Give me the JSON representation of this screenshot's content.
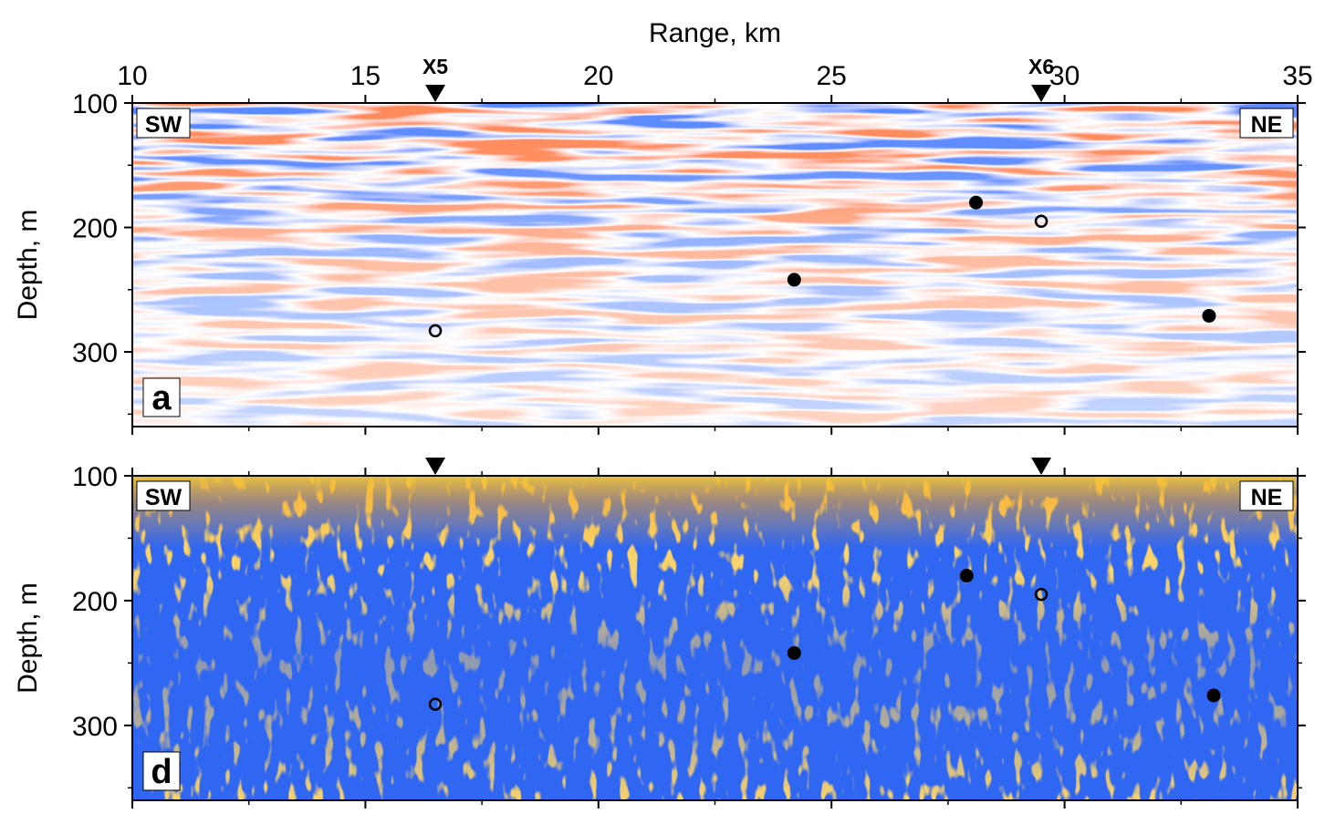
{
  "chart_data": [
    {
      "type": "heatmap",
      "panel_letter": "a",
      "title": "",
      "xlabel": "Range, km",
      "ylabel": "Depth, m",
      "xlim": [
        10,
        35
      ],
      "ylim": [
        360,
        100
      ],
      "x_ticks": [
        10,
        15,
        20,
        25,
        30,
        35
      ],
      "x_minor_ticks": [
        12.5,
        17.5,
        22.5,
        27.5,
        32.5
      ],
      "y_ticks": [
        100,
        200,
        300
      ],
      "y_minor_ticks": [
        150,
        250,
        350
      ],
      "corner_labels": {
        "left": "SW",
        "right": "NE"
      },
      "station_markers": [
        {
          "name": "X5",
          "x": 16.5,
          "y": 100
        },
        {
          "name": "X6",
          "x": 29.5,
          "y": 100
        }
      ],
      "points_filled": [
        {
          "x": 24.2,
          "y": 242
        },
        {
          "x": 28.1,
          "y": 180
        },
        {
          "x": 33.1,
          "y": 271
        }
      ],
      "points_open": [
        {
          "x": 16.5,
          "y": 283
        },
        {
          "x": 29.5,
          "y": 195
        }
      ],
      "colormap": [
        "#2233ee",
        "#ffffff",
        "#ee2222"
      ]
    },
    {
      "type": "heatmap",
      "panel_letter": "d",
      "title": "",
      "xlabel": "",
      "ylabel": "Depth, m",
      "xlim": [
        10,
        35
      ],
      "ylim": [
        360,
        100
      ],
      "x_ticks": [
        10,
        15,
        20,
        25,
        30,
        35
      ],
      "x_minor_ticks": [
        12.5,
        17.5,
        22.5,
        27.5,
        32.5
      ],
      "y_ticks": [
        100,
        200,
        300
      ],
      "y_minor_ticks": [
        150,
        250,
        350
      ],
      "corner_labels": {
        "left": "SW",
        "right": "NE"
      },
      "station_markers": [
        {
          "name": "X5",
          "x": 16.5,
          "y": 100
        },
        {
          "name": "X6",
          "x": 29.5,
          "y": 100
        }
      ],
      "points_filled": [
        {
          "x": 24.2,
          "y": 242
        },
        {
          "x": 27.9,
          "y": 180
        },
        {
          "x": 33.2,
          "y": 276
        }
      ],
      "points_open": [
        {
          "x": 16.5,
          "y": 283
        },
        {
          "x": 29.5,
          "y": 195
        }
      ],
      "colormap": [
        "#2f66f2",
        "#f5a623",
        "#f2d23a"
      ]
    }
  ]
}
